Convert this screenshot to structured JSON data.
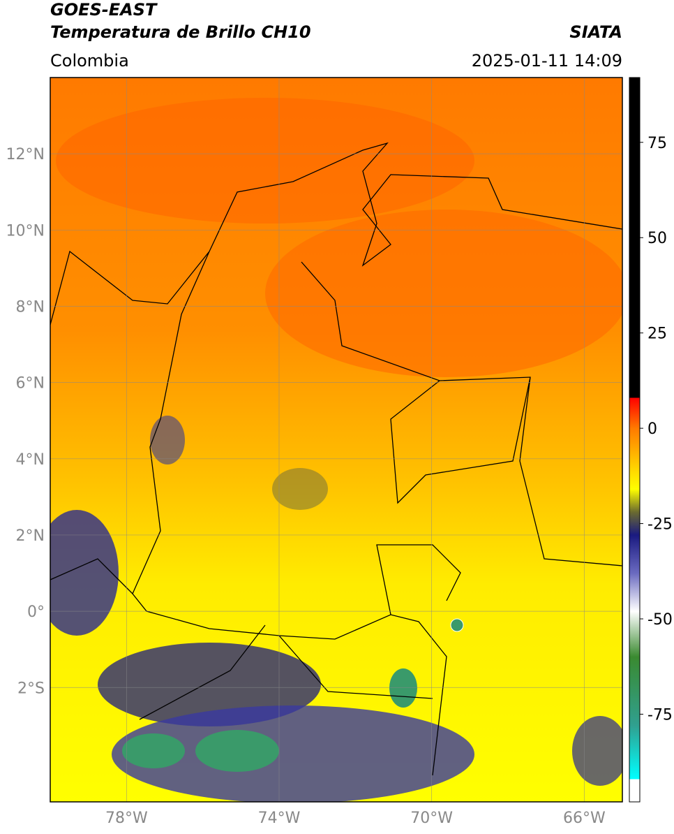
{
  "title": "GOES-EAST",
  "subtitle": "Temperatura de Brillo CH10",
  "source": "SIATA",
  "region": "Colombia",
  "datetime": "2025-01-11 14:09",
  "map": {
    "xlim": [
      -80,
      -65
    ],
    "ylim": [
      -5,
      14
    ],
    "xticks": [
      {
        "value": -78,
        "label": "78°W"
      },
      {
        "value": -74,
        "label": "74°W"
      },
      {
        "value": -70,
        "label": "70°W"
      },
      {
        "value": -66,
        "label": "66°W"
      }
    ],
    "yticks": [
      {
        "value": 12,
        "label": "12°N"
      },
      {
        "value": 10,
        "label": "10°N"
      },
      {
        "value": 8,
        "label": "8°N"
      },
      {
        "value": 6,
        "label": "6°N"
      },
      {
        "value": 4,
        "label": "4°N"
      },
      {
        "value": 2,
        "label": "2°N"
      },
      {
        "value": 0,
        "label": "0°"
      },
      {
        "value": -2,
        "label": "2°S"
      }
    ],
    "grid": true
  },
  "colorbar": {
    "clim": [
      -98,
      92
    ],
    "ticks": [
      75,
      50,
      25,
      0,
      -25,
      -50,
      -75
    ],
    "stops": [
      {
        "value": 92,
        "color": "#000000"
      },
      {
        "value": 8,
        "color": "#000000"
      },
      {
        "value": 8,
        "color": "#ff0000"
      },
      {
        "value": 0,
        "color": "#ff7a00"
      },
      {
        "value": -10,
        "color": "#ffd000"
      },
      {
        "value": -16,
        "color": "#ffff00"
      },
      {
        "value": -22,
        "color": "#6a6a30"
      },
      {
        "value": -28,
        "color": "#1a1a80"
      },
      {
        "value": -38,
        "color": "#6a6ac0"
      },
      {
        "value": -48,
        "color": "#ffffff"
      },
      {
        "value": -60,
        "color": "#3a8a30"
      },
      {
        "value": -78,
        "color": "#30a090"
      },
      {
        "value": -92,
        "color": "#00ffff"
      },
      {
        "value": -92,
        "color": "#ffffff"
      },
      {
        "value": -98,
        "color": "#ffffff"
      }
    ]
  }
}
